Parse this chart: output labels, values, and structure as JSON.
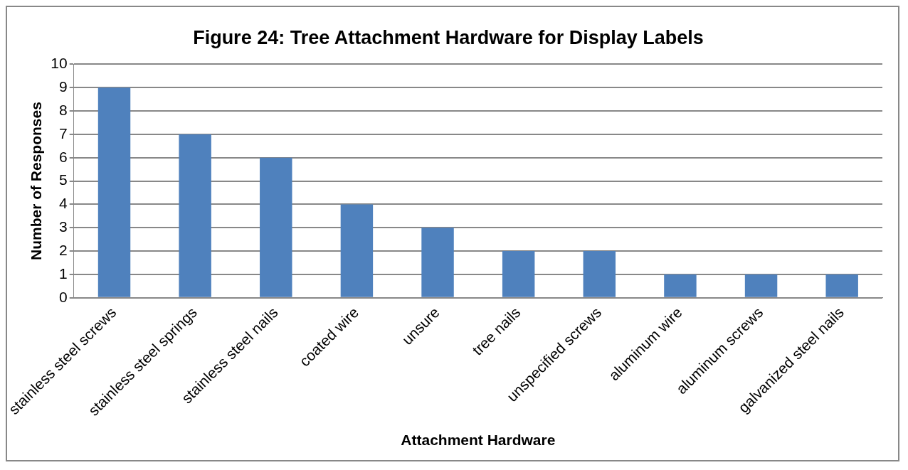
{
  "chart_data": {
    "type": "bar",
    "title": "Figure 24: Tree Attachment Hardware for Display Labels",
    "xlabel": "Attachment Hardware",
    "ylabel": "Number of Responses",
    "categories": [
      "stainless steel screws",
      "stainless steel springs",
      "stainless steel nails",
      "coated wire",
      "unsure",
      "tree nails",
      "unspecified screws",
      "aluminum wire",
      "aluminum screws",
      "galvanized steel nails"
    ],
    "values": [
      9,
      7,
      6,
      4,
      3,
      2,
      2,
      1,
      1,
      1
    ],
    "color": "#4f81bd",
    "ylim": [
      0,
      10
    ],
    "yticks": [
      0,
      1,
      2,
      3,
      4,
      5,
      6,
      7,
      8,
      9,
      10
    ],
    "grid": "y",
    "legend": false
  }
}
